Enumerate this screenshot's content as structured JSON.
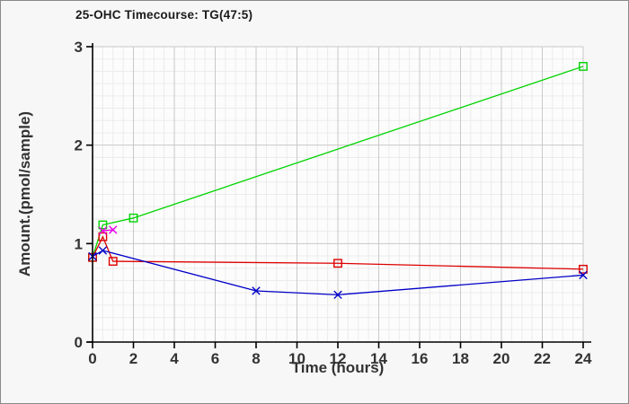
{
  "chart_data": {
    "type": "line",
    "title": "25-OHC Timecourse: TG(47:5)",
    "xlabel": "Time (hours)",
    "ylabel": "Amount.(pmol/sample)",
    "xlim": [
      0,
      24
    ],
    "ylim": [
      0,
      3
    ],
    "x_ticks": [
      0,
      2,
      4,
      6,
      8,
      10,
      12,
      14,
      16,
      18,
      20,
      22,
      24
    ],
    "y_ticks": [
      0,
      1,
      2,
      3
    ],
    "grid": {
      "minor_x_step": 0.5,
      "minor_y_step": 0.125,
      "major_x_step": 2,
      "major_y_step": 1,
      "minor_color": "#ebebeb",
      "major_color": "#c9c9c9"
    },
    "legend": "none",
    "series": [
      {
        "name": "green-squares",
        "color": "#00d400",
        "marker": "square",
        "points": [
          [
            0,
            0.86
          ],
          [
            0.5,
            1.19
          ],
          [
            2,
            1.26
          ],
          [
            24,
            2.8
          ]
        ]
      },
      {
        "name": "red-squares",
        "color": "#dd0000",
        "marker": "square",
        "points": [
          [
            0,
            0.86
          ],
          [
            0.5,
            1.07
          ],
          [
            1,
            0.82
          ],
          [
            12,
            0.8
          ],
          [
            24,
            0.74
          ]
        ]
      },
      {
        "name": "blue-x",
        "color": "#0000c8",
        "marker": "x",
        "points": [
          [
            0,
            0.87
          ],
          [
            0.5,
            0.93
          ],
          [
            8,
            0.52
          ],
          [
            12,
            0.48
          ],
          [
            24,
            0.68
          ]
        ]
      },
      {
        "name": "magenta-x",
        "color": "#e800e8",
        "marker": "x",
        "points": [
          [
            0.5,
            1.13
          ],
          [
            1,
            1.14
          ]
        ]
      }
    ]
  }
}
